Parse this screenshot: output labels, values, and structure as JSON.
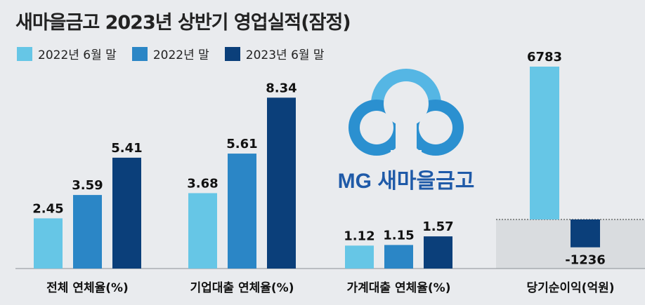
{
  "title": "새마을금고 2023년 상반기 영업실적(잠정)",
  "legend": [
    {
      "label": "2022년 6월 말",
      "color": "#66c6e6"
    },
    {
      "label": "2022년 말",
      "color": "#2b86c6"
    },
    {
      "label": "2023년 6월 말",
      "color": "#0b3f7a"
    }
  ],
  "logo": {
    "brand": "MG 새마을금고"
  },
  "chart_data": [
    {
      "type": "bar",
      "categories": [
        "전체 연체율(%)",
        "기업대출 연체율(%)",
        "가계대출 연체율(%)"
      ],
      "series": [
        {
          "name": "2022년 6월 말",
          "values": [
            2.45,
            3.68,
            1.12
          ]
        },
        {
          "name": "2022년 말",
          "values": [
            3.59,
            5.61,
            1.15
          ]
        },
        {
          "name": "2023년 6월 말",
          "values": [
            5.41,
            8.34,
            1.57
          ]
        }
      ],
      "ylim": [
        0,
        9
      ]
    },
    {
      "type": "bar",
      "categories": [
        "당기순이익(억원)"
      ],
      "series": [
        {
          "name": "2022년 6월 말",
          "values": [
            6783
          ]
        },
        {
          "name": "2023년 6월 말",
          "values": [
            -1236
          ]
        }
      ],
      "ylim": [
        -1500,
        7500
      ]
    }
  ]
}
